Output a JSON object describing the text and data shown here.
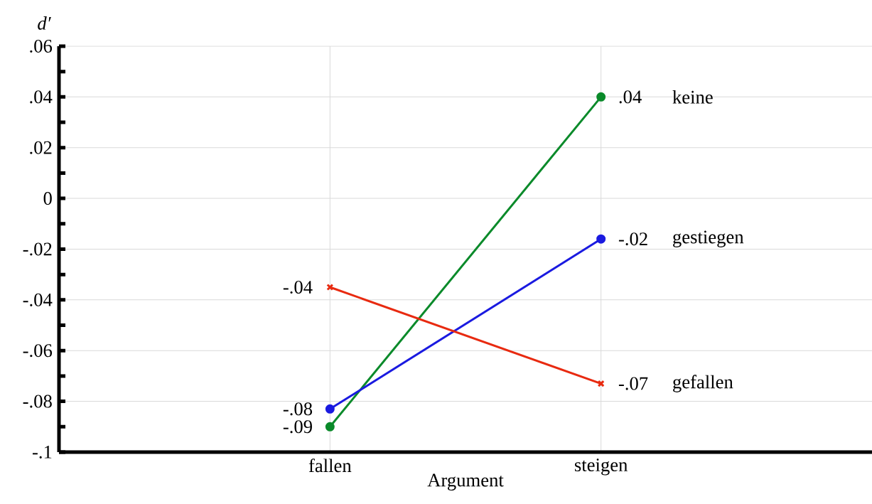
{
  "chart_data": {
    "type": "line",
    "xlabel": "Argument",
    "ylabel": "*d′*",
    "categories": [
      null,
      "fallen",
      "steigen",
      null
    ],
    "series": [
      {
        "name": "keine",
        "color": "#0a8a2a",
        "marker": "circle",
        "values": [
          null,
          -0.09,
          0.04,
          null
        ],
        "value_labels": [
          null,
          "-.09",
          ".04",
          null
        ]
      },
      {
        "name": "gestiegen",
        "color": "#1a1ae0",
        "marker": "circle",
        "values": [
          null,
          -0.083,
          -0.016,
          null
        ],
        "value_labels": [
          null,
          "-.08",
          "-.02",
          null
        ]
      },
      {
        "name": "gefallen",
        "color": "#e82a10",
        "marker": "cross",
        "values": [
          null,
          -0.035,
          -0.073,
          null
        ],
        "value_labels": [
          null,
          "-.04",
          "-.07",
          null
        ]
      }
    ],
    "ylim": [
      -0.1,
      0.06
    ],
    "yticks": [
      {
        "value": -0.1,
        "label": "-.1"
      },
      {
        "value": -0.09,
        "label": null
      },
      {
        "value": -0.08,
        "label": "-.08"
      },
      {
        "value": -0.07,
        "label": null
      },
      {
        "value": -0.06,
        "label": "-.06"
      },
      {
        "value": -0.05,
        "label": null
      },
      {
        "value": -0.04,
        "label": "-.04"
      },
      {
        "value": -0.03,
        "label": null
      },
      {
        "value": -0.02,
        "label": "-.02"
      },
      {
        "value": -0.01,
        "label": null
      },
      0,
      {
        "value": 0.01,
        "label": null
      },
      {
        "value": 0.02,
        "label": ".02"
      },
      {
        "value": 0.03,
        "label": null
      },
      {
        "value": 0.04,
        "label": ".04"
      },
      {
        "value": 0.05,
        "label": null
      },
      {
        "value": 0.06,
        "label": ".06"
      }
    ],
    "grid": true,
    "legend": false
  }
}
